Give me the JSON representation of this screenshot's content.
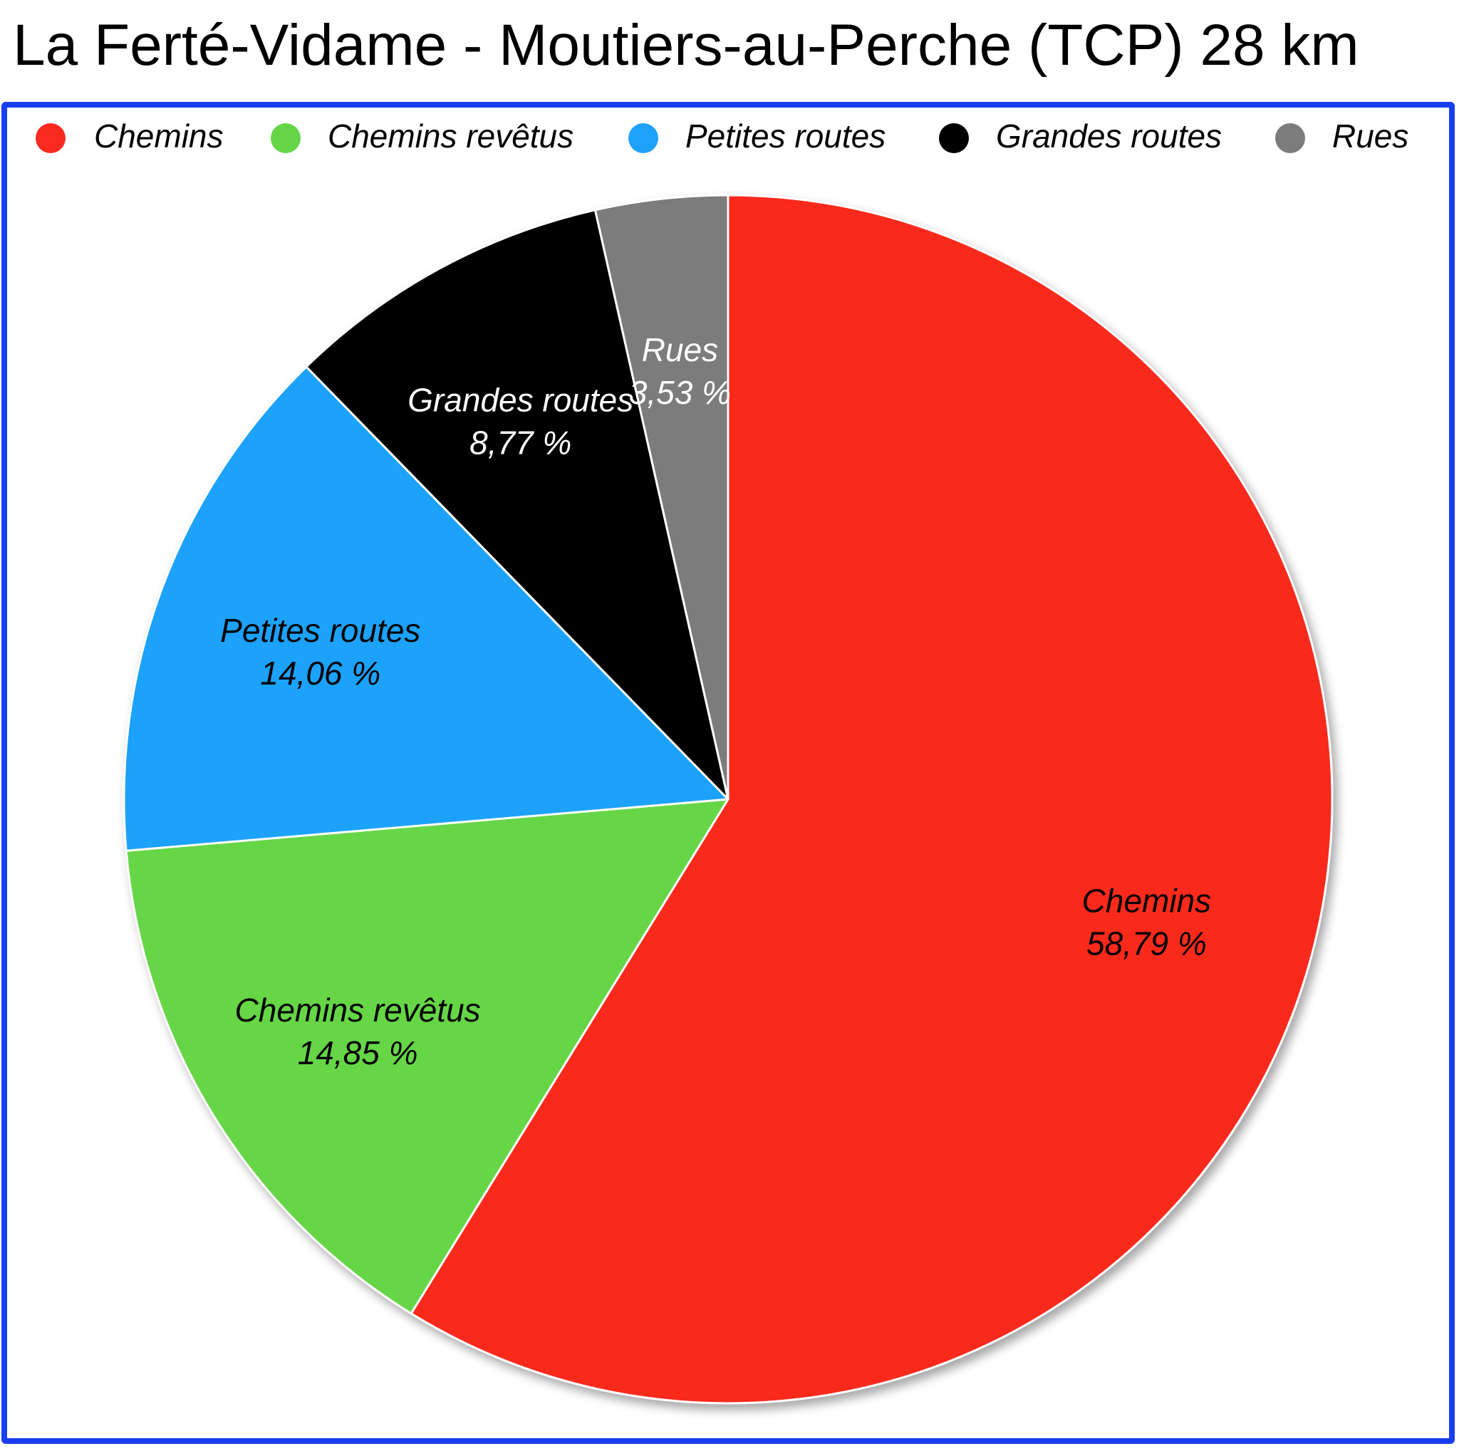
{
  "title": "La Ferté-Vidame - Moutiers-au-Perche (TCP) 28 km",
  "colors": {
    "frame_border": "#1a3ff0",
    "slice_border": "#ffffff"
  },
  "chart_data": {
    "type": "pie",
    "title": "La Ferté-Vidame - Moutiers-au-Perche (TCP) 28 km",
    "legend_placement": "top",
    "start_angle": "12 o'clock",
    "direction": "clockwise",
    "slices": [
      {
        "label": "Chemins",
        "value": 58.79,
        "value_text": "58,79 %",
        "color": "#f92a1f",
        "text_color": "#000000"
      },
      {
        "label": "Chemins revêtus",
        "value": 14.85,
        "value_text": "14,85 %",
        "color": "#66d646",
        "text_color": "#000000"
      },
      {
        "label": "Petites routes",
        "value": 14.06,
        "value_text": "14,06 %",
        "color": "#1fa2fb",
        "text_color": "#000000"
      },
      {
        "label": "Grandes routes",
        "value": 8.77,
        "value_text": "8,77 %",
        "color": "#000000",
        "text_color": "#ffffff"
      },
      {
        "label": "Rues",
        "value": 3.53,
        "value_text": "3,53 %",
        "color": "#7c7c7c",
        "text_color": "#ffffff"
      }
    ]
  }
}
